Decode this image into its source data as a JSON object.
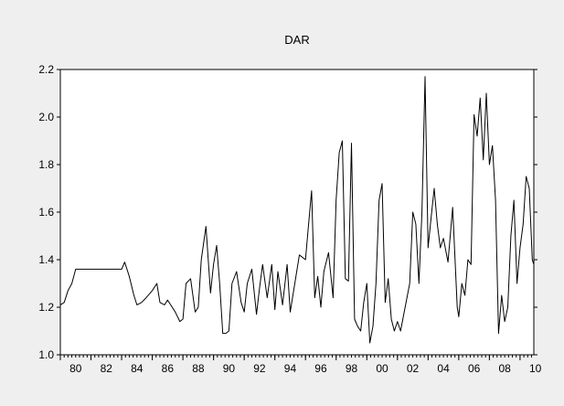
{
  "chart_data": {
    "type": "line",
    "title": "DAR",
    "xlabel": "",
    "ylabel": "",
    "xlim": [
      1980.0,
      2010.9
    ],
    "ylim": [
      1.0,
      2.2
    ],
    "x_tick_values": [
      1980,
      1982,
      1984,
      1986,
      1988,
      1990,
      1992,
      1994,
      1996,
      1998,
      2000,
      2002,
      2004,
      2006,
      2008,
      2010
    ],
    "x_tick_labels": [
      "80",
      "82",
      "84",
      "86",
      "88",
      "90",
      "92",
      "94",
      "96",
      "98",
      "00",
      "02",
      "04",
      "06",
      "08",
      "10"
    ],
    "y_tick_values": [
      1.0,
      1.2,
      1.4,
      1.6,
      1.8,
      2.0,
      2.2
    ],
    "y_tick_labels": [
      "1.0",
      "1.2",
      "1.4",
      "1.6",
      "1.8",
      "2.0",
      "2.2"
    ],
    "grid": false,
    "line_color": "#000000",
    "series": [
      {
        "name": "",
        "x": [
          1980.0,
          1980.25,
          1980.5,
          1980.75,
          1981.0,
          1981.5,
          1982.0,
          1982.5,
          1983.0,
          1983.5,
          1984.0,
          1984.2,
          1984.5,
          1984.8,
          1985.0,
          1985.3,
          1985.6,
          1986.0,
          1986.3,
          1986.5,
          1986.8,
          1987.0,
          1987.3,
          1987.5,
          1987.8,
          1988.0,
          1988.2,
          1988.5,
          1988.8,
          1989.0,
          1989.2,
          1989.5,
          1989.8,
          1990.0,
          1990.2,
          1990.4,
          1990.6,
          1990.8,
          1991.0,
          1991.2,
          1991.5,
          1991.8,
          1992.0,
          1992.2,
          1992.5,
          1992.8,
          1993.0,
          1993.2,
          1993.5,
          1993.8,
          1994.0,
          1994.2,
          1994.5,
          1994.8,
          1995.0,
          1995.3,
          1995.6,
          1996.0,
          1996.2,
          1996.4,
          1996.6,
          1996.8,
          1997.0,
          1997.2,
          1997.5,
          1997.8,
          1998.0,
          1998.2,
          1998.4,
          1998.6,
          1998.8,
          1999.0,
          1999.2,
          1999.4,
          1999.6,
          1999.8,
          2000.0,
          2000.2,
          2000.4,
          2000.6,
          2000.8,
          2001.0,
          2001.2,
          2001.4,
          2001.6,
          2001.8,
          2002.0,
          2002.2,
          2002.5,
          2002.8,
          2003.0,
          2003.2,
          2003.4,
          2003.6,
          2003.8,
          2004.0,
          2004.2,
          2004.4,
          2004.6,
          2004.8,
          2005.0,
          2005.3,
          2005.6,
          2005.9,
          2006.0,
          2006.2,
          2006.4,
          2006.6,
          2006.8,
          2007.0,
          2007.2,
          2007.4,
          2007.6,
          2007.8,
          2008.0,
          2008.2,
          2008.4,
          2008.6,
          2008.8,
          2009.0,
          2009.2,
          2009.4,
          2009.6,
          2009.8,
          2010.0,
          2010.2,
          2010.4,
          2010.6,
          2010.8,
          2010.9
        ],
        "values": [
          1.21,
          1.22,
          1.27,
          1.3,
          1.36,
          1.36,
          1.36,
          1.36,
          1.36,
          1.36,
          1.36,
          1.39,
          1.33,
          1.25,
          1.21,
          1.22,
          1.24,
          1.27,
          1.3,
          1.22,
          1.21,
          1.23,
          1.2,
          1.18,
          1.14,
          1.15,
          1.3,
          1.32,
          1.18,
          1.2,
          1.4,
          1.54,
          1.26,
          1.38,
          1.46,
          1.3,
          1.09,
          1.09,
          1.1,
          1.3,
          1.35,
          1.22,
          1.18,
          1.3,
          1.36,
          1.17,
          1.28,
          1.38,
          1.24,
          1.38,
          1.19,
          1.35,
          1.21,
          1.38,
          1.18,
          1.3,
          1.42,
          1.4,
          1.55,
          1.69,
          1.24,
          1.33,
          1.2,
          1.35,
          1.43,
          1.24,
          1.65,
          1.85,
          1.9,
          1.32,
          1.31,
          1.89,
          1.15,
          1.12,
          1.1,
          1.22,
          1.3,
          1.05,
          1.12,
          1.3,
          1.65,
          1.72,
          1.22,
          1.32,
          1.15,
          1.1,
          1.14,
          1.1,
          1.2,
          1.3,
          1.6,
          1.55,
          1.3,
          1.6,
          2.17,
          1.45,
          1.58,
          1.7,
          1.55,
          1.45,
          1.49,
          1.39,
          1.62,
          1.2,
          1.16,
          1.3,
          1.25,
          1.4,
          1.38,
          2.01,
          1.92,
          2.08,
          1.82,
          2.1,
          1.8,
          1.88,
          1.65,
          1.09,
          1.25,
          1.14,
          1.2,
          1.5,
          1.65,
          1.3,
          1.45,
          1.55,
          1.75,
          1.7,
          1.4,
          1.38
        ]
      }
    ]
  }
}
